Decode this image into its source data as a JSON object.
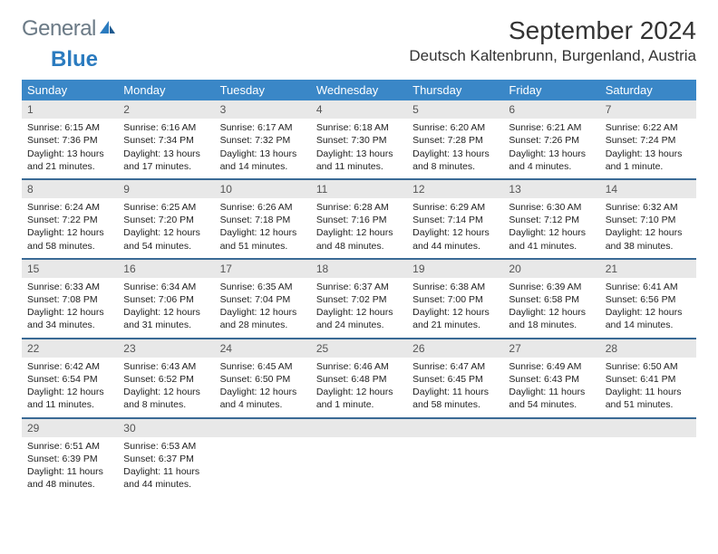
{
  "logo": {
    "word1": "General",
    "word2": "Blue"
  },
  "title": "September 2024",
  "location": "Deutsch Kaltenbrunn, Burgenland, Austria",
  "colors": {
    "header_bg": "#3a87c7",
    "header_text": "#ffffff",
    "daynum_bg": "#e8e8e8",
    "daynum_text": "#555555",
    "week_divider": "#3a6a95",
    "logo_gray": "#6b7a86",
    "logo_blue": "#2b7bbf",
    "body_text": "#222222"
  },
  "fonts": {
    "title_size_pt": 21,
    "location_size_pt": 13,
    "header_size_pt": 10,
    "cell_size_pt": 8
  },
  "day_names": [
    "Sunday",
    "Monday",
    "Tuesday",
    "Wednesday",
    "Thursday",
    "Friday",
    "Saturday"
  ],
  "weeks": [
    [
      {
        "n": "1",
        "sr": "6:15 AM",
        "ss": "7:36 PM",
        "dl": "13 hours and 21 minutes."
      },
      {
        "n": "2",
        "sr": "6:16 AM",
        "ss": "7:34 PM",
        "dl": "13 hours and 17 minutes."
      },
      {
        "n": "3",
        "sr": "6:17 AM",
        "ss": "7:32 PM",
        "dl": "13 hours and 14 minutes."
      },
      {
        "n": "4",
        "sr": "6:18 AM",
        "ss": "7:30 PM",
        "dl": "13 hours and 11 minutes."
      },
      {
        "n": "5",
        "sr": "6:20 AM",
        "ss": "7:28 PM",
        "dl": "13 hours and 8 minutes."
      },
      {
        "n": "6",
        "sr": "6:21 AM",
        "ss": "7:26 PM",
        "dl": "13 hours and 4 minutes."
      },
      {
        "n": "7",
        "sr": "6:22 AM",
        "ss": "7:24 PM",
        "dl": "13 hours and 1 minute."
      }
    ],
    [
      {
        "n": "8",
        "sr": "6:24 AM",
        "ss": "7:22 PM",
        "dl": "12 hours and 58 minutes."
      },
      {
        "n": "9",
        "sr": "6:25 AM",
        "ss": "7:20 PM",
        "dl": "12 hours and 54 minutes."
      },
      {
        "n": "10",
        "sr": "6:26 AM",
        "ss": "7:18 PM",
        "dl": "12 hours and 51 minutes."
      },
      {
        "n": "11",
        "sr": "6:28 AM",
        "ss": "7:16 PM",
        "dl": "12 hours and 48 minutes."
      },
      {
        "n": "12",
        "sr": "6:29 AM",
        "ss": "7:14 PM",
        "dl": "12 hours and 44 minutes."
      },
      {
        "n": "13",
        "sr": "6:30 AM",
        "ss": "7:12 PM",
        "dl": "12 hours and 41 minutes."
      },
      {
        "n": "14",
        "sr": "6:32 AM",
        "ss": "7:10 PM",
        "dl": "12 hours and 38 minutes."
      }
    ],
    [
      {
        "n": "15",
        "sr": "6:33 AM",
        "ss": "7:08 PM",
        "dl": "12 hours and 34 minutes."
      },
      {
        "n": "16",
        "sr": "6:34 AM",
        "ss": "7:06 PM",
        "dl": "12 hours and 31 minutes."
      },
      {
        "n": "17",
        "sr": "6:35 AM",
        "ss": "7:04 PM",
        "dl": "12 hours and 28 minutes."
      },
      {
        "n": "18",
        "sr": "6:37 AM",
        "ss": "7:02 PM",
        "dl": "12 hours and 24 minutes."
      },
      {
        "n": "19",
        "sr": "6:38 AM",
        "ss": "7:00 PM",
        "dl": "12 hours and 21 minutes."
      },
      {
        "n": "20",
        "sr": "6:39 AM",
        "ss": "6:58 PM",
        "dl": "12 hours and 18 minutes."
      },
      {
        "n": "21",
        "sr": "6:41 AM",
        "ss": "6:56 PM",
        "dl": "12 hours and 14 minutes."
      }
    ],
    [
      {
        "n": "22",
        "sr": "6:42 AM",
        "ss": "6:54 PM",
        "dl": "12 hours and 11 minutes."
      },
      {
        "n": "23",
        "sr": "6:43 AM",
        "ss": "6:52 PM",
        "dl": "12 hours and 8 minutes."
      },
      {
        "n": "24",
        "sr": "6:45 AM",
        "ss": "6:50 PM",
        "dl": "12 hours and 4 minutes."
      },
      {
        "n": "25",
        "sr": "6:46 AM",
        "ss": "6:48 PM",
        "dl": "12 hours and 1 minute."
      },
      {
        "n": "26",
        "sr": "6:47 AM",
        "ss": "6:45 PM",
        "dl": "11 hours and 58 minutes."
      },
      {
        "n": "27",
        "sr": "6:49 AM",
        "ss": "6:43 PM",
        "dl": "11 hours and 54 minutes."
      },
      {
        "n": "28",
        "sr": "6:50 AM",
        "ss": "6:41 PM",
        "dl": "11 hours and 51 minutes."
      }
    ],
    [
      {
        "n": "29",
        "sr": "6:51 AM",
        "ss": "6:39 PM",
        "dl": "11 hours and 48 minutes."
      },
      {
        "n": "30",
        "sr": "6:53 AM",
        "ss": "6:37 PM",
        "dl": "11 hours and 44 minutes."
      },
      null,
      null,
      null,
      null,
      null
    ]
  ],
  "labels": {
    "sunrise": "Sunrise:",
    "sunset": "Sunset:",
    "daylight": "Daylight:"
  }
}
